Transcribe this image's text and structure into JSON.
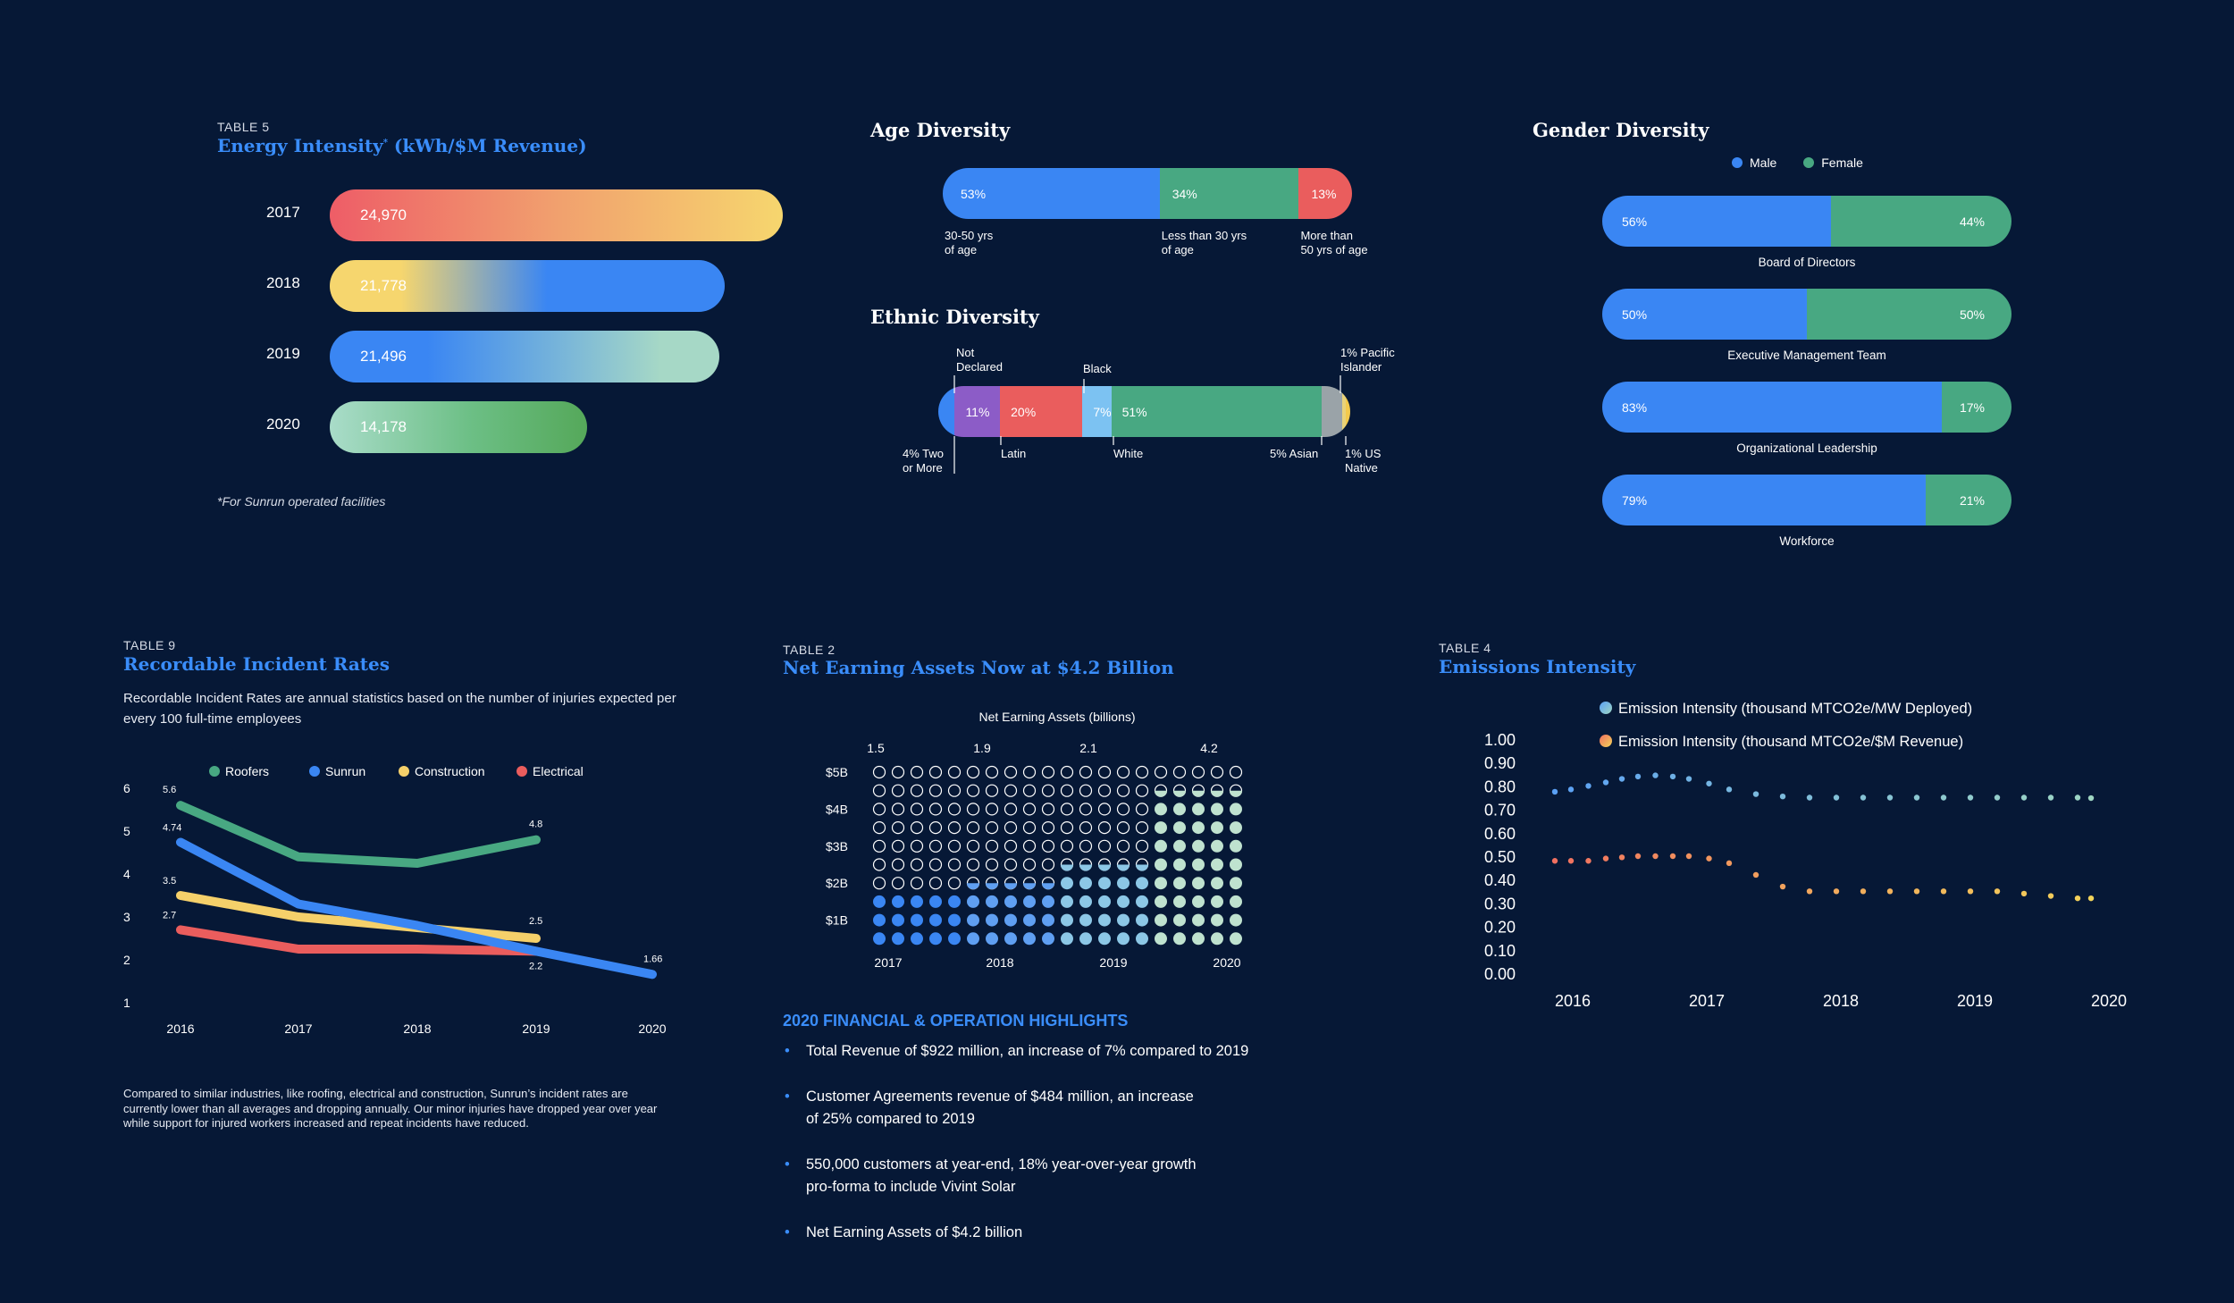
{
  "energy": {
    "tag": "TABLE 5",
    "title": "Energy Intensity",
    "title_mark": "*",
    "title_unit": " (kWh/$M Revenue)",
    "footnote": "*For Sunrun operated facilities",
    "rows": [
      {
        "year": "2017",
        "label": "24,970",
        "value": 24970
      },
      {
        "year": "2018",
        "label": "21,778",
        "value": 21778
      },
      {
        "year": "2019",
        "label": "21,496",
        "value": 21496
      },
      {
        "year": "2020",
        "label": "14,178",
        "value": 14178
      }
    ]
  },
  "age": {
    "title": "Age Diversity",
    "segments": [
      {
        "label": "53%",
        "value": 53,
        "color": "#3a86f3",
        "caption": [
          "30-50 yrs",
          "of age"
        ]
      },
      {
        "label": "34%",
        "value": 34,
        "color": "#48a882",
        "caption": [
          "Less than 30 yrs",
          "of age"
        ]
      },
      {
        "label": "13%",
        "value": 13,
        "color": "#ea5d5d",
        "caption": [
          "More than",
          "50 yrs of age"
        ]
      }
    ]
  },
  "ethnic": {
    "title": "Ethnic Diversity",
    "segments": [
      {
        "label": "",
        "value": 4,
        "color": "#3a86f3"
      },
      {
        "label": "11%",
        "value": 11,
        "color": "#8c5cc7"
      },
      {
        "label": "20%",
        "value": 20,
        "color": "#ea5d5d"
      },
      {
        "label": "7%",
        "value": 7,
        "color": "#7cc2f2"
      },
      {
        "label": "51%",
        "value": 51,
        "color": "#48a882"
      },
      {
        "label": "",
        "value": 5,
        "color": "#9aa3a8"
      },
      {
        "label": "",
        "value": 1,
        "color": "#e8d27a"
      },
      {
        "label": "",
        "value": 1,
        "color": "#f2c94c"
      }
    ],
    "top_labels": [
      {
        "text": [
          "Not",
          "Declared"
        ]
      },
      {
        "text": [
          "Black"
        ]
      },
      {
        "text": [
          "1% Pacific",
          "Islander"
        ]
      }
    ],
    "bottom_labels": [
      {
        "text": [
          "4% Two",
          "or More"
        ]
      },
      {
        "text": [
          "Latin"
        ]
      },
      {
        "text": [
          "White"
        ]
      },
      {
        "text": [
          "5% Asian"
        ]
      },
      {
        "text": [
          "1% US",
          "Native"
        ]
      }
    ]
  },
  "gender": {
    "title": "Gender Diversity",
    "legend": [
      {
        "name": "Male",
        "color": "#3a86f3"
      },
      {
        "name": "Female",
        "color": "#48a882"
      }
    ],
    "rows": [
      {
        "name": "Board of Directors",
        "male": 56,
        "female": 44,
        "male_label": "56%",
        "female_label": "44%"
      },
      {
        "name": "Executive Management Team",
        "male": 50,
        "female": 50,
        "male_label": "50%",
        "female_label": "50%"
      },
      {
        "name": "Organizational Leadership",
        "male": 83,
        "female": 17,
        "male_label": "83%",
        "female_label": "17%"
      },
      {
        "name": "Workforce",
        "male": 79,
        "female": 21,
        "male_label": "79%",
        "female_label": "21%"
      }
    ]
  },
  "incident": {
    "tag": "TABLE 9",
    "title": "Recordable Incident Rates",
    "subtitle": "Recordable Incident Rates are annual statistics based on the number of injuries expected per every 100 full-time employees",
    "footnote": "Compared to similar industries, like roofing, electrical and construction, Sunrun’s incident rates are currently lower than all averages and dropping annually. Our minor injuries have dropped year over year while support for injured workers increased and repeat incidents have reduced."
  },
  "assets": {
    "tag": "TABLE 2",
    "title": "Net Earning Assets Now at $4.2 Billion",
    "highlights_title": "2020 FINANCIAL & OPERATION HIGHLIGHTS",
    "highlights": [
      [
        "Total Revenue of $922 million, an increase of 7% compared to 2019"
      ],
      [
        "Customer Agreements revenue of $484 million, an increase",
        "of 25% compared to 2019"
      ],
      [
        "550,000 customers at year-end, 18% year-over-year growth",
        "pro-forma to include Vivint Solar"
      ],
      [
        "Net Earning Assets of $4.2 billion"
      ]
    ]
  },
  "emissions": {
    "tag": "TABLE 4",
    "title": "Emissions Intensity"
  },
  "chart_data": [
    {
      "type": "line",
      "title": "Recordable Incident Rates",
      "x": [
        "2016",
        "2017",
        "2018",
        "2019",
        "2020"
      ],
      "ylim": [
        1,
        6
      ],
      "yticks": [
        "1",
        "2",
        "3",
        "4",
        "5",
        "6"
      ],
      "series": [
        {
          "name": "Roofers",
          "color": "#48a882",
          "values": [
            5.6,
            4.4,
            4.25,
            4.8,
            null
          ],
          "labels": [
            "5.6",
            null,
            null,
            "4.8",
            null
          ]
        },
        {
          "name": "Sunrun",
          "color": "#3a86f3",
          "values": [
            4.74,
            3.3,
            2.8,
            2.2,
            1.66
          ],
          "labels": [
            "4.74",
            null,
            null,
            null,
            "1.66"
          ]
        },
        {
          "name": "Construction",
          "color": "#f5d06a",
          "values": [
            3.5,
            3.0,
            2.75,
            2.5,
            null
          ],
          "labels": [
            "3.5",
            null,
            null,
            "2.5",
            null
          ]
        },
        {
          "name": "Electrical",
          "color": "#ea5d5d",
          "values": [
            2.7,
            2.25,
            2.25,
            2.2,
            null
          ],
          "labels": [
            "2.7",
            null,
            null,
            "2.2",
            null
          ]
        }
      ]
    },
    {
      "type": "bar",
      "title": "Net Earning Assets (billions)",
      "categories": [
        "2017",
        "2018",
        "2019",
        "2020"
      ],
      "values": [
        1.5,
        1.9,
        2.1,
        4.2
      ],
      "value_labels": [
        "1.5",
        "1.9",
        "2.1",
        "4.2"
      ],
      "yticks": [
        "$5B",
        "$4B",
        "$3B",
        "$2B",
        "$1B"
      ],
      "ylim": [
        0,
        5
      ]
    },
    {
      "type": "line",
      "title": "Emissions Intensity",
      "x": [
        "2016",
        "2017",
        "2018",
        "2019",
        "2020"
      ],
      "ylim": [
        0,
        1
      ],
      "yticks": [
        "1.00",
        "0.90",
        "0.80",
        "0.70",
        "0.60",
        "0.50",
        "0.40",
        "0.30",
        "0.20",
        "0.10",
        "0.00"
      ],
      "series": [
        {
          "name": "Emission Intensity (thousand MTCO2e/MW Deployed)",
          "color": "#5aa0f5",
          "color_end": "#9fd6c2",
          "x": [
            0,
            0.12,
            0.25,
            0.38,
            0.5,
            0.62,
            0.75,
            0.88,
            1.0,
            1.15,
            1.3,
            1.5,
            1.7,
            1.9,
            2.1,
            2.3,
            2.5,
            2.7,
            2.9,
            3.1,
            3.3,
            3.5,
            3.7,
            3.9,
            4.0
          ],
          "values": [
            0.775,
            0.785,
            0.8,
            0.815,
            0.83,
            0.84,
            0.845,
            0.84,
            0.83,
            0.81,
            0.785,
            0.765,
            0.755,
            0.75,
            0.75,
            0.75,
            0.75,
            0.75,
            0.75,
            0.75,
            0.75,
            0.75,
            0.75,
            0.75,
            0.748
          ]
        },
        {
          "name": "Emission Intensity (thousand MTCO2e/$M Revenue)",
          "color": "#f07060",
          "color_end": "#f2d35a",
          "x": [
            0,
            0.12,
            0.25,
            0.38,
            0.5,
            0.62,
            0.75,
            0.88,
            1.0,
            1.15,
            1.3,
            1.5,
            1.7,
            1.9,
            2.1,
            2.3,
            2.5,
            2.7,
            2.9,
            3.1,
            3.3,
            3.5,
            3.7,
            3.9,
            4.0
          ],
          "values": [
            0.48,
            0.48,
            0.48,
            0.49,
            0.495,
            0.5,
            0.5,
            0.5,
            0.5,
            0.49,
            0.47,
            0.42,
            0.37,
            0.35,
            0.35,
            0.35,
            0.35,
            0.35,
            0.35,
            0.35,
            0.35,
            0.34,
            0.33,
            0.32,
            0.32
          ]
        }
      ]
    }
  ]
}
